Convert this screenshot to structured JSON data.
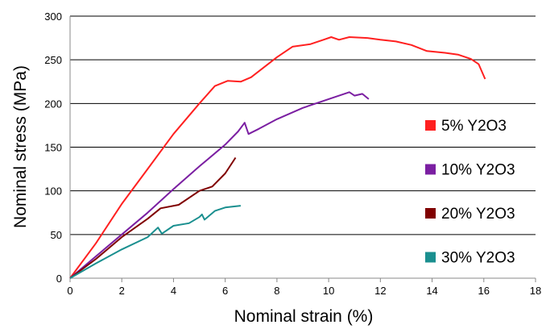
{
  "chart_data": {
    "type": "line",
    "title": "",
    "xlabel": "Nominal strain (%)",
    "ylabel": "Nominal stress (MPa)",
    "xlim": [
      0,
      18
    ],
    "ylim": [
      0,
      300
    ],
    "x_ticks": [
      0,
      2,
      4,
      6,
      8,
      10,
      12,
      14,
      16,
      18
    ],
    "y_ticks": [
      0,
      50,
      100,
      150,
      200,
      250,
      300
    ],
    "grid": "horizontal",
    "legend_position": "right",
    "series": [
      {
        "name": "5% Y2O3",
        "color": "#ff2020",
        "points": [
          [
            0,
            0
          ],
          [
            1,
            40
          ],
          [
            2,
            85
          ],
          [
            3,
            125
          ],
          [
            4,
            165
          ],
          [
            5,
            200
          ],
          [
            5.6,
            220
          ],
          [
            6.1,
            226
          ],
          [
            6.6,
            225
          ],
          [
            7,
            230
          ],
          [
            8,
            253
          ],
          [
            8.6,
            265
          ],
          [
            9.3,
            268
          ],
          [
            9.8,
            273
          ],
          [
            10.1,
            276
          ],
          [
            10.4,
            273
          ],
          [
            10.8,
            276
          ],
          [
            11.5,
            275
          ],
          [
            12,
            273
          ],
          [
            12.6,
            271
          ],
          [
            13.2,
            267
          ],
          [
            13.8,
            260
          ],
          [
            14.5,
            258
          ],
          [
            15,
            256
          ],
          [
            15.5,
            251
          ],
          [
            15.8,
            245
          ],
          [
            16.05,
            228
          ]
        ]
      },
      {
        "name": "10% Y2O3",
        "color": "#7b1fa2",
        "points": [
          [
            0,
            0
          ],
          [
            1,
            25
          ],
          [
            2,
            50
          ],
          [
            3,
            75
          ],
          [
            4,
            102
          ],
          [
            5,
            128
          ],
          [
            6,
            153
          ],
          [
            6.5,
            168
          ],
          [
            6.75,
            178
          ],
          [
            6.9,
            165
          ],
          [
            7.3,
            171
          ],
          [
            8,
            182
          ],
          [
            9,
            195
          ],
          [
            10,
            205
          ],
          [
            10.8,
            213
          ],
          [
            11,
            209
          ],
          [
            11.3,
            211
          ],
          [
            11.55,
            205
          ]
        ]
      },
      {
        "name": "20% Y2O3",
        "color": "#800000",
        "points": [
          [
            0,
            0
          ],
          [
            1,
            22
          ],
          [
            2,
            47
          ],
          [
            3,
            68
          ],
          [
            3.5,
            80
          ],
          [
            4.2,
            84
          ],
          [
            5,
            100
          ],
          [
            5.5,
            105
          ],
          [
            6,
            120
          ],
          [
            6.4,
            138
          ]
        ]
      },
      {
        "name": "30% Y2O3",
        "color": "#1a8f8f",
        "points": [
          [
            0,
            0
          ],
          [
            1,
            17
          ],
          [
            2,
            33
          ],
          [
            3,
            47
          ],
          [
            3.4,
            58
          ],
          [
            3.55,
            51
          ],
          [
            4,
            60
          ],
          [
            4.6,
            63
          ],
          [
            5,
            70
          ],
          [
            5.1,
            73
          ],
          [
            5.2,
            67
          ],
          [
            5.6,
            77
          ],
          [
            6,
            81
          ],
          [
            6.6,
            83
          ]
        ]
      }
    ]
  }
}
